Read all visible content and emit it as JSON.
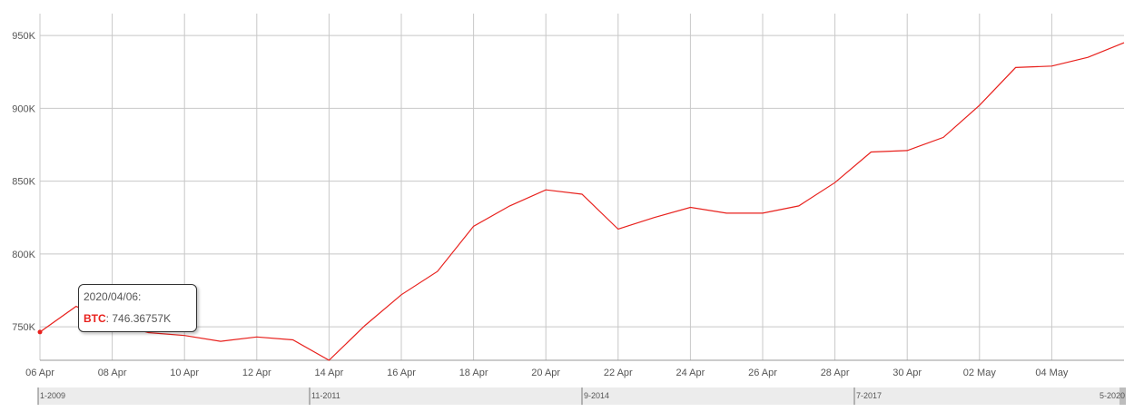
{
  "chart_data": {
    "type": "line",
    "x": [
      "06 Apr",
      "07 Apr",
      "08 Apr",
      "09 Apr",
      "10 Apr",
      "11 Apr",
      "12 Apr",
      "13 Apr",
      "14 Apr",
      "15 Apr",
      "16 Apr",
      "17 Apr",
      "18 Apr",
      "19 Apr",
      "20 Apr",
      "21 Apr",
      "22 Apr",
      "23 Apr",
      "24 Apr",
      "25 Apr",
      "26 Apr",
      "27 Apr",
      "28 Apr",
      "29 Apr",
      "30 Apr",
      "01 May",
      "02 May",
      "03 May",
      "04 May",
      "05 May",
      "06 May"
    ],
    "series": [
      {
        "name": "BTC",
        "color": "#e8211d",
        "values": [
          746.4,
          764,
          753,
          746,
          744,
          740,
          743,
          741,
          727,
          751,
          772,
          788,
          819,
          833,
          844,
          841,
          817,
          825,
          832,
          828,
          828,
          833,
          849,
          870,
          871,
          880,
          902,
          928,
          929,
          935,
          945
        ]
      }
    ],
    "x_tick_labels": [
      "06 Apr",
      "08 Apr",
      "10 Apr",
      "12 Apr",
      "14 Apr",
      "16 Apr",
      "18 Apr",
      "20 Apr",
      "22 Apr",
      "24 Apr",
      "26 Apr",
      "28 Apr",
      "30 Apr",
      "02 May",
      "04 May"
    ],
    "y_unit_suffix": "K",
    "y_ticks": [
      750,
      800,
      850,
      900,
      950
    ],
    "y_tick_labels": [
      "750K",
      "800K",
      "850K",
      "900K",
      "950K"
    ],
    "ylim": [
      727,
      965
    ],
    "grid": true,
    "navigator": {
      "labels": [
        "1-2009",
        "11-2011",
        "9-2014",
        "7-2017",
        "5-2020"
      ]
    },
    "tooltip": {
      "date": "2020/04/06:",
      "series_name": "BTC",
      "value_text": ": 746.36757K"
    }
  }
}
